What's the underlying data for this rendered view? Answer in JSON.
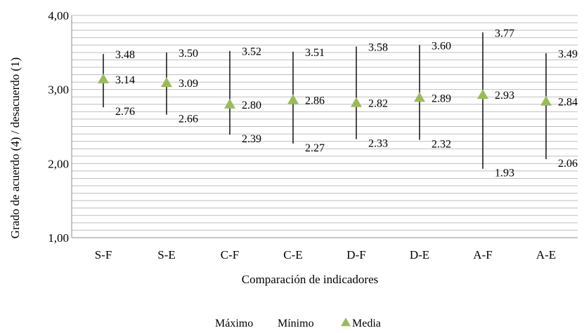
{
  "chart_data": {
    "type": "stock-high-low-mean",
    "xlabel": "Comparación de indicadores",
    "ylabel": "Grado de acuerdo (4) / desacuerdo (1)",
    "ylim": [
      1,
      4
    ],
    "y_ticks": [
      "1,00",
      "2,00",
      "3,00",
      "4,00"
    ],
    "grid": true,
    "legend_position": "bottom",
    "categories": [
      "S-F",
      "S-E",
      "C-F",
      "C-E",
      "D-F",
      "D-E",
      "A-F",
      "A-E"
    ],
    "series": [
      {
        "name": "Máximo",
        "values": [
          3.48,
          3.5,
          3.52,
          3.51,
          3.58,
          3.6,
          3.77,
          3.49
        ]
      },
      {
        "name": "Mínimo",
        "values": [
          2.76,
          2.66,
          2.39,
          2.27,
          2.33,
          2.32,
          1.93,
          2.06
        ]
      },
      {
        "name": "Media",
        "values": [
          3.14,
          3.09,
          2.8,
          2.86,
          2.82,
          2.89,
          2.93,
          2.84
        ]
      }
    ],
    "max_labels": [
      "3.48",
      "3.50",
      "3.52",
      "3.51",
      "3.58",
      "3.60",
      "3.77",
      "3.49"
    ],
    "min_labels": [
      "2.76",
      "2.66",
      "2.39",
      "2.27",
      "2.33",
      "2.32",
      "1.93",
      "2.06"
    ],
    "mean_labels": [
      "3.14",
      "3.09",
      "2.80",
      "2.86",
      "2.82",
      "2.89",
      "2.93",
      "2.84"
    ],
    "colors": {
      "media_marker": "#9bbb59",
      "range_line": "#000000",
      "grid": "#bfbfbf"
    }
  }
}
